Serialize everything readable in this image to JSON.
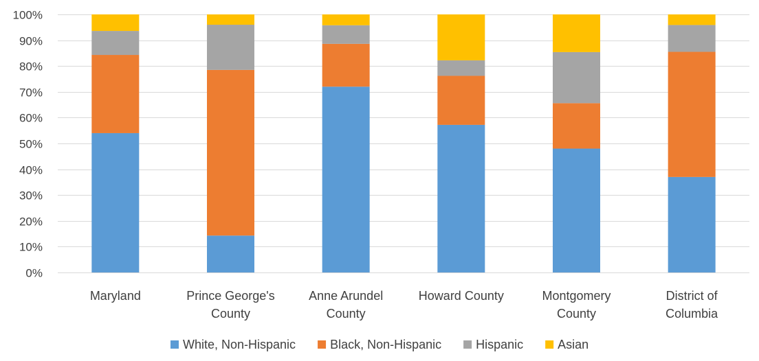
{
  "chart_data": {
    "type": "bar",
    "stacked": true,
    "percent": true,
    "title": "",
    "xlabel": "",
    "ylabel": "",
    "ylim": [
      0,
      100
    ],
    "yticks": [
      "0%",
      "10%",
      "20%",
      "30%",
      "40%",
      "50%",
      "60%",
      "70%",
      "80%",
      "90%",
      "100%"
    ],
    "grid": true,
    "legend_position": "bottom",
    "categories": [
      [
        "Maryland"
      ],
      [
        "Prince George's",
        "County"
      ],
      [
        "Anne Arundel",
        "County"
      ],
      [
        "Howard County"
      ],
      [
        "Montgomery",
        "County"
      ],
      [
        "District of",
        "Columbia"
      ]
    ],
    "series": [
      {
        "name": "White, Non-Hispanic",
        "color": "#5b9bd5",
        "values": [
          54,
          14.3,
          72,
          57.2,
          48,
          37
        ]
      },
      {
        "name": "Black, Non-Hispanic",
        "color": "#ed7d31",
        "values": [
          30.3,
          64.2,
          16.6,
          19,
          17.6,
          48.5
        ]
      },
      {
        "name": "Hispanic",
        "color": "#a5a5a5",
        "values": [
          9.3,
          17.5,
          7.2,
          6,
          19.8,
          10.4
        ]
      },
      {
        "name": "Asian",
        "color": "#ffc000",
        "values": [
          6.4,
          4,
          4.2,
          17.8,
          14.6,
          4.1
        ]
      }
    ]
  }
}
